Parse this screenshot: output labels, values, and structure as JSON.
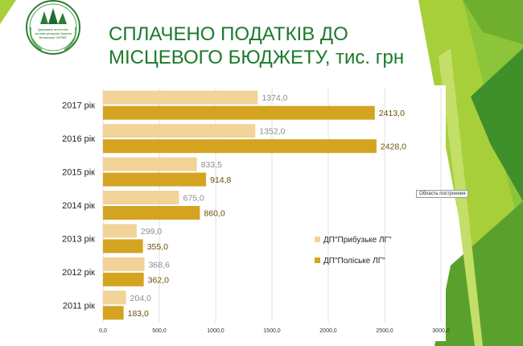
{
  "logo": {
    "icon": "forest-emblem-logo",
    "text_line1": "Державне агентство",
    "text_line2": "лісових ресурсів України",
    "text_line3": "Волинське ОУЛМГ"
  },
  "slide": {
    "title_line1": "СПЛАЧЕНО ПОДАТКІВ ДО",
    "title_line2": "МІСЦЕВОГО БЮДЖЕТУ, тис. грн",
    "tooltip": "Область построения"
  },
  "chart_data": {
    "type": "bar",
    "orientation": "horizontal",
    "categories": [
      "2017 рік",
      "2016 рік",
      "2015 рік",
      "2014 рік",
      "2013 рік",
      "2012 рік",
      "2011 рік"
    ],
    "series": [
      {
        "name": "ДП\"Прибузьке ЛГ\"",
        "values": [
          1374.0,
          1352.0,
          833.5,
          675.0,
          299.0,
          368.6,
          204.0
        ],
        "labels": [
          "1374,0",
          "1352,0",
          "833,5",
          "675,0",
          "299,0",
          "368,6",
          "204,0"
        ],
        "color": "#f2d398",
        "label_color": "#8c8c8c"
      },
      {
        "name": "ДП\"Поліське ЛГ\"",
        "values": [
          2413.0,
          2428.0,
          914.8,
          860.0,
          355.0,
          362.0,
          183.0
        ],
        "labels": [
          "2413,0",
          "2428,0",
          "914,8",
          "860,0",
          "355,0",
          "362,0",
          "183,0"
        ],
        "color": "#d4a420",
        "label_color": "#6e4f06"
      }
    ],
    "xlim": [
      0,
      3000
    ],
    "xticks": [
      0,
      500,
      1000,
      1500,
      2000,
      2500,
      3000
    ],
    "xtick_labels": [
      "0,0",
      "500,0",
      "1000,0",
      "1500,0",
      "2000,0",
      "2500,0",
      "3000,0"
    ],
    "grid": true,
    "legend_position": "right"
  },
  "colors": {
    "title": "#1b7a2a",
    "green_light": "#a6cf3a",
    "green_mid": "#6fae2e",
    "green_dark": "#3f8f2b",
    "gridline": "#d9d9d9"
  }
}
